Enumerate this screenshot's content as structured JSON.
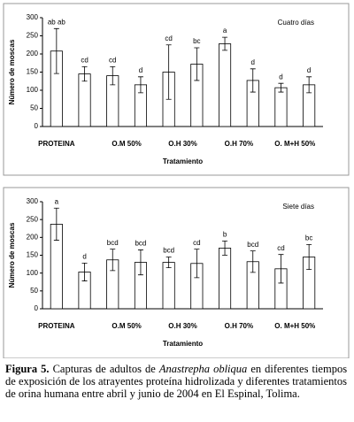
{
  "chart_data": [
    {
      "type": "bar",
      "annotation": "Cuatro días",
      "ylabel": "Número de moscas",
      "xlabel": "Tratamiento",
      "categories": [
        "PROTEINA",
        null,
        "O.M 50%",
        null,
        "O.H 30%",
        null,
        "O.H 70%",
        null,
        "O. M+H 50%",
        null
      ],
      "values": [
        208,
        145,
        140,
        115,
        150,
        172,
        228,
        127,
        107,
        115
      ],
      "errors": [
        62,
        20,
        25,
        22,
        75,
        45,
        18,
        32,
        12,
        22
      ],
      "letters": [
        "ab ab",
        "cd",
        "cd",
        "d",
        "cd",
        "bc",
        "a",
        "d",
        "d",
        "d"
      ],
      "color": "#ffffff",
      "ylim": [
        0,
        300
      ],
      "yticks": [
        0,
        50,
        100,
        150,
        200,
        250,
        300
      ]
    },
    {
      "type": "bar",
      "annotation": "Siete días",
      "ylabel": "Número de moscas",
      "xlabel": "Tratamiento",
      "categories": [
        "PROTEINA",
        null,
        "O.M 50%",
        null,
        "O.H 30%",
        null,
        "O.H 70%",
        null,
        "O. M+H 50%",
        null
      ],
      "values": [
        237,
        103,
        137,
        130,
        130,
        127,
        170,
        132,
        112,
        145
      ],
      "errors": [
        45,
        25,
        30,
        35,
        15,
        40,
        20,
        30,
        40,
        35
      ],
      "letters": [
        "a",
        "d",
        "bcd",
        "bcd",
        "bcd",
        "cd",
        "b",
        "bcd",
        "cd",
        "bc"
      ],
      "color": "#ffffff",
      "ylim": [
        0,
        300
      ],
      "yticks": [
        0,
        50,
        100,
        150,
        200,
        250,
        300
      ]
    }
  ],
  "caption": {
    "label": "Figura 5.",
    "before": "Capturas de adultos de",
    "species": "Anastrepha obliqua",
    "after": "en diferentes tiempos de exposición de los atrayentes proteína hidrolizada y diferentes tratamientos de orina humana entre abril y junio de 2004 en El Espinal, Tolima."
  }
}
